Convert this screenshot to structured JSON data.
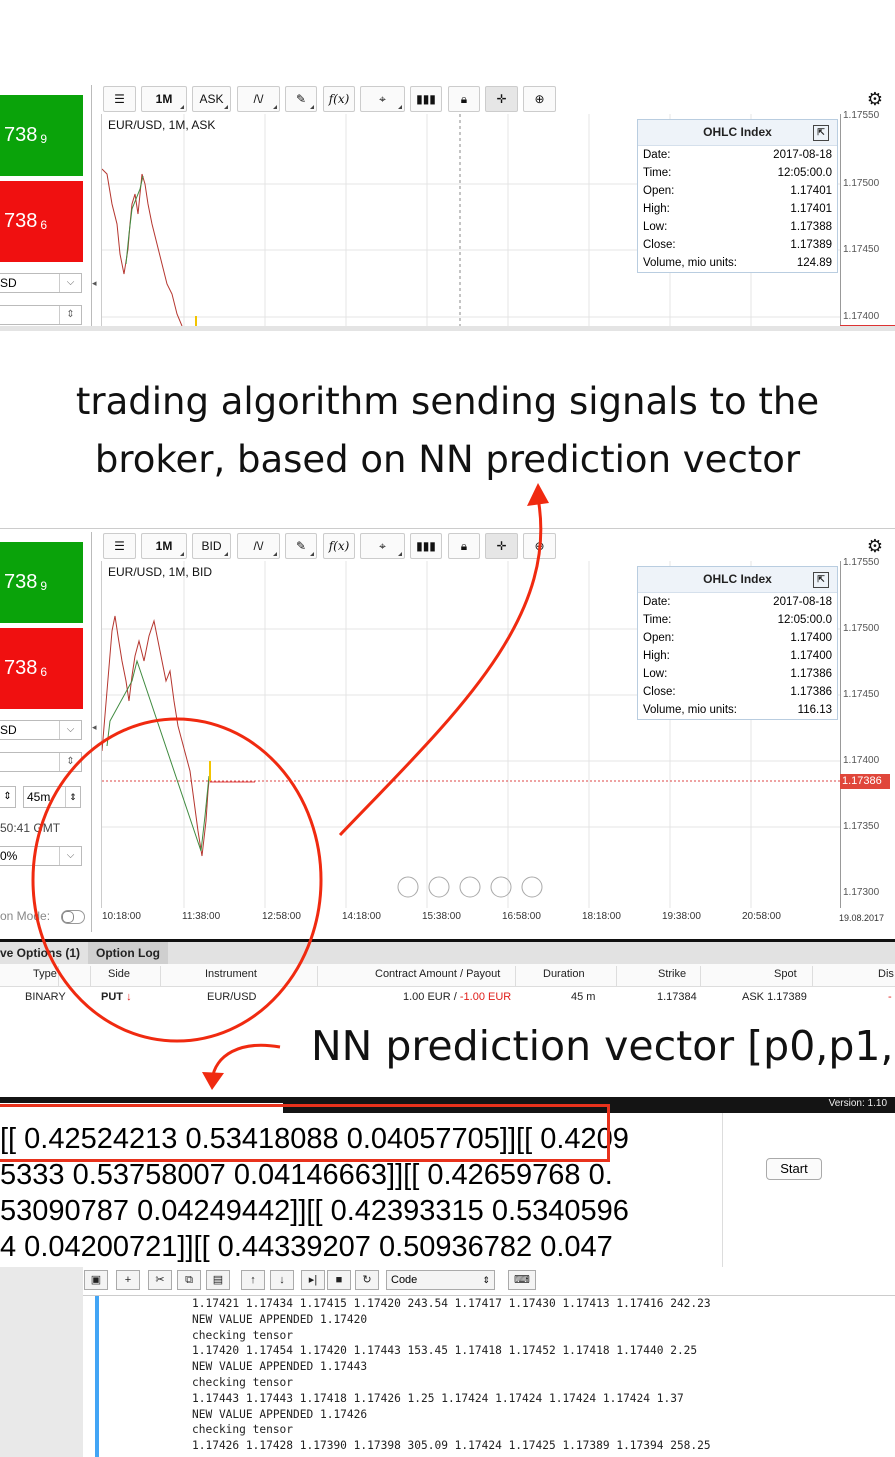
{
  "top_panel": {
    "buy_price": "738",
    "buy_price_sub": "9",
    "sell_price": "738",
    "sell_price_sub": "6",
    "currency_select": "SD",
    "toolbar": {
      "timeframe": "1M",
      "price_side": "ASK",
      "fx_label": "f(x)"
    },
    "chart_label": "EUR/USD, 1M, ASK",
    "ohlc": {
      "title": "OHLC Index",
      "rows": [
        {
          "label": "Date:",
          "value": "2017-08-18"
        },
        {
          "label": "Time:",
          "value": "12:05:00.0"
        },
        {
          "label": "Open:",
          "value": "1.17401"
        },
        {
          "label": "High:",
          "value": "1.17401"
        },
        {
          "label": "Low:",
          "value": "1.17388"
        },
        {
          "label": "Close:",
          "value": "1.17389"
        },
        {
          "label": "Volume, mio units:",
          "value": "124.89"
        }
      ]
    },
    "price_axis": [
      "1.17550",
      "1.17500",
      "1.17450",
      "1.17400"
    ]
  },
  "caption1": {
    "line1": "trading algorithm sending signals to the",
    "line2": "broker, based on NN prediction vector"
  },
  "bottom_panel": {
    "buy_price": "738",
    "buy_price_sub": "9",
    "sell_price": "738",
    "sell_price_sub": "6",
    "currency_select": "SD",
    "duration_value": "45m",
    "clock": "50:41 GMT",
    "percent_select": "0%",
    "mode_label": "on Mode:",
    "toolbar": {
      "timeframe": "1M",
      "price_side": "BID",
      "fx_label": "f(x)"
    },
    "chart_label": "EUR/USD, 1M, BID",
    "ohlc": {
      "title": "OHLC Index",
      "rows": [
        {
          "label": "Date:",
          "value": "2017-08-18"
        },
        {
          "label": "Time:",
          "value": "12:05:00.0"
        },
        {
          "label": "Open:",
          "value": "1.17400"
        },
        {
          "label": "High:",
          "value": "1.17400"
        },
        {
          "label": "Low:",
          "value": "1.17386"
        },
        {
          "label": "Close:",
          "value": "1.17386"
        },
        {
          "label": "Volume, mio units:",
          "value": "116.13"
        }
      ]
    },
    "price_axis": [
      "1.17550",
      "1.17500",
      "1.17450",
      "1.17400",
      "1.17350",
      "1.17300"
    ],
    "current_price": "1.17386",
    "time_axis": [
      "10:18:00",
      "11:38:00",
      "12:58:00",
      "14:18:00",
      "15:38:00",
      "16:58:00",
      "18:18:00",
      "19:38:00",
      "20:58:00",
      "19.08.2017"
    ]
  },
  "tabs": {
    "active_options": "ve Options (1)",
    "option_log": "Option Log"
  },
  "table": {
    "headers": [
      "Type",
      "Side",
      "Instrument",
      "Contract Amount / Payout",
      "Duration",
      "Strike",
      "Spot",
      "Dis"
    ],
    "row": {
      "type": "BINARY",
      "side": "PUT",
      "side_arrow": "↓",
      "instrument": "EUR/USD",
      "amount": "1.00 EUR / ",
      "payout": "-1.00 EUR",
      "duration": "45 m",
      "strike": "1.17384",
      "spot": "ASK 1.17389",
      "dis": "-"
    }
  },
  "caption2": "NN prediction vector [p0,p1,p",
  "version": "Version: 1.10",
  "vector_lines": [
    "[[ 0.42524213  0.53418088  0.04057705]][[ 0.4209",
    "5333  0.53758007  0.04146663]][[ 0.42659768  0.",
    "53090787  0.04249442]][[ 0.42393315  0.5340596",
    "4  0.04200721]][[ 0.44339207  0.50936782  0.047"
  ],
  "start_button": "Start",
  "editor": {
    "mode_select": "Code"
  },
  "console_lines": [
    "1.17421 1.17434 1.17415 1.17420 243.54 1.17417 1.17430 1.17413 1.17416 242.23",
    "NEW VALUE APPENDED 1.17420",
    "checking tensor",
    "1.17420 1.17454 1.17420 1.17443 153.45 1.17418 1.17452 1.17418 1.17440 2.25",
    "NEW VALUE APPENDED 1.17443",
    "checking tensor",
    "1.17443 1.17443 1.17418 1.17426 1.25 1.17424 1.17424 1.17424 1.17424 1.37",
    "NEW VALUE APPENDED 1.17426",
    "checking tensor",
    "1.17426 1.17428 1.17390 1.17398 305.09 1.17424 1.17425 1.17389 1.17394 258.25"
  ],
  "colors": {
    "buy": "#0aa30a",
    "sell": "#f01010",
    "annotation": "#f02a10",
    "price_tag": "#e0463a"
  }
}
